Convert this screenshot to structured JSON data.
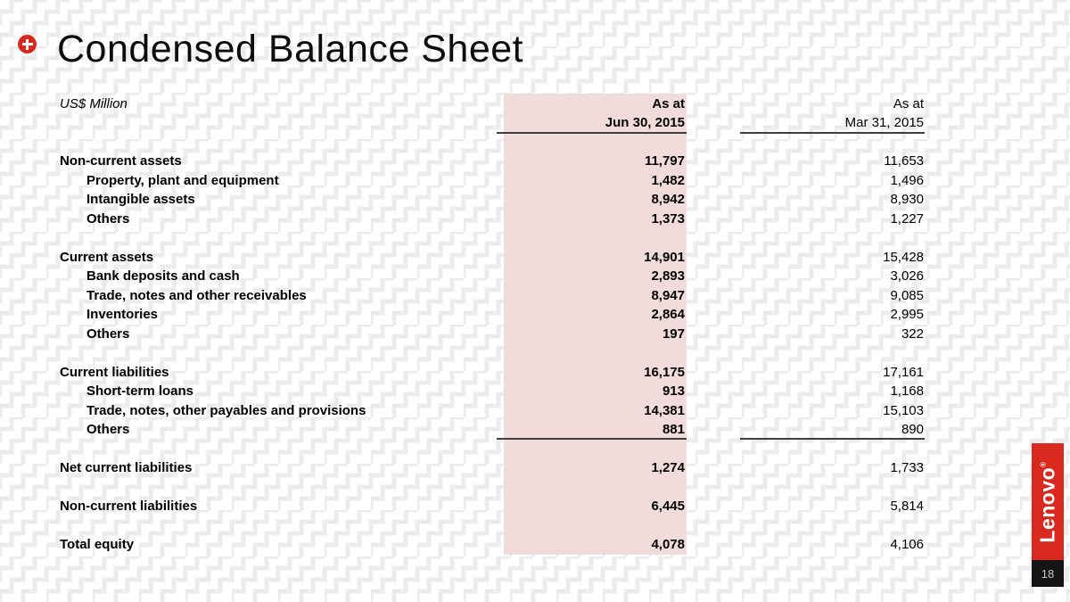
{
  "slide": {
    "title": "Condensed Balance Sheet",
    "unit_label": "US$ Million",
    "brand": "Lenovo",
    "brand_mark": "®",
    "page_number": "18",
    "colors": {
      "accent_red": "#d9281e",
      "highlight_pink": "#f2dcdb",
      "page_box_black": "#141414"
    }
  },
  "table": {
    "columns": [
      {
        "label_line1": "As at",
        "label_line2": "Jun 30, 2015",
        "highlighted": true
      },
      {
        "label_line1": "As at",
        "label_line2": "Mar 31, 2015",
        "highlighted": false
      }
    ],
    "sections": [
      {
        "rows": [
          {
            "label": "Non-current assets",
            "indent": false,
            "jun": "11,797",
            "mar": "11,653"
          },
          {
            "label": "Property, plant and equipment",
            "indent": true,
            "jun": "1,482",
            "mar": "1,496"
          },
          {
            "label": "Intangible assets",
            "indent": true,
            "jun": "8,942",
            "mar": "8,930"
          },
          {
            "label": "Others",
            "indent": true,
            "jun": "1,373",
            "mar": "1,227"
          }
        ]
      },
      {
        "rows": [
          {
            "label": "Current assets",
            "indent": false,
            "jun": "14,901",
            "mar": "15,428"
          },
          {
            "label": "Bank deposits and cash",
            "indent": true,
            "jun": "2,893",
            "mar": "3,026"
          },
          {
            "label": "Trade, notes and other receivables",
            "indent": true,
            "jun": "8,947",
            "mar": "9,085"
          },
          {
            "label": "Inventories",
            "indent": true,
            "jun": "2,864",
            "mar": "2,995"
          },
          {
            "label": "Others",
            "indent": true,
            "jun": "197",
            "mar": "322"
          }
        ]
      },
      {
        "rows": [
          {
            "label": "Current liabilities",
            "indent": false,
            "jun": "16,175",
            "mar": "17,161"
          },
          {
            "label": "Short-term loans",
            "indent": true,
            "jun": "913",
            "mar": "1,168"
          },
          {
            "label": "Trade, notes, other payables and provisions",
            "indent": true,
            "jun": "14,381",
            "mar": "15,103"
          },
          {
            "label": "Others",
            "indent": true,
            "jun": "881",
            "mar": "890"
          }
        ]
      },
      {
        "rows": [
          {
            "label": "Net current liabilities",
            "indent": false,
            "jun": "1,274",
            "mar": "1,733"
          }
        ]
      },
      {
        "rows": [
          {
            "label": "Non-current liabilities",
            "indent": false,
            "jun": "6,445",
            "mar": "5,814"
          }
        ]
      },
      {
        "rows": [
          {
            "label": "Total equity",
            "indent": false,
            "jun": "4,078",
            "mar": "4,106"
          }
        ]
      }
    ]
  }
}
